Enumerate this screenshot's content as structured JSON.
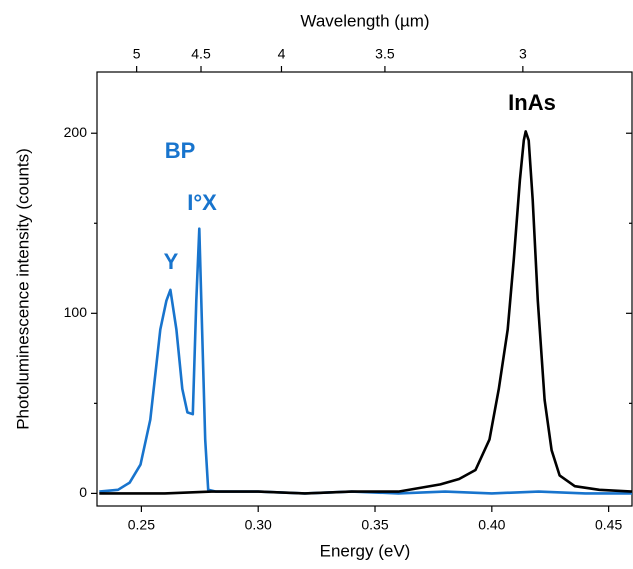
{
  "chart_data": {
    "type": "line",
    "xlabel": "Energy (eV)",
    "ylabel": "Photoluminescence intensity (counts)",
    "x2label": "Wavelength (µm)",
    "xlim": [
      0.231,
      0.46
    ],
    "ylim": [
      -7,
      234
    ],
    "xticks": [
      0.25,
      {
        "value": 0.3,
        "label": "0.30"
      },
      0.35,
      {
        "value": 0.4,
        "label": "0.40"
      },
      0.45
    ],
    "yticks": [
      0,
      100,
      200
    ],
    "y_minor_ticks": [
      50,
      150
    ],
    "x2ticks": [
      5,
      4.5,
      4,
      3.5,
      3
    ],
    "annotations": [
      "Y",
      "I°X"
    ],
    "series": [
      {
        "name": "BP",
        "color": "#1874cd",
        "x": [
          0.232,
          0.24,
          0.245,
          0.2496,
          0.2538,
          0.2581,
          0.2607,
          0.2624,
          0.265,
          0.2675,
          0.2697,
          0.272,
          0.2735,
          0.2748,
          0.276,
          0.2773,
          0.2786,
          0.282,
          0.3,
          0.32,
          0.34,
          0.36,
          0.38,
          0.4,
          0.42,
          0.44,
          0.46
        ],
        "values": [
          1,
          2,
          6,
          16,
          41,
          91,
          107,
          113,
          91,
          58,
          45,
          44,
          107,
          147,
          91,
          30,
          2,
          1,
          1,
          0,
          1,
          0,
          1,
          0,
          1,
          0,
          0
        ]
      },
      {
        "name": "InAs",
        "color": "#000000",
        "x": [
          0.232,
          0.26,
          0.28,
          0.3,
          0.32,
          0.34,
          0.36,
          0.369,
          0.378,
          0.386,
          0.393,
          0.399,
          0.403,
          0.4068,
          0.4094,
          0.412,
          0.4137,
          0.4145,
          0.4158,
          0.4175,
          0.4197,
          0.4226,
          0.4256,
          0.429,
          0.4355,
          0.446,
          0.46
        ],
        "values": [
          0,
          0,
          1,
          1,
          0,
          1,
          1,
          3,
          5,
          8,
          13,
          30,
          58,
          91,
          130,
          174,
          196,
          201,
          196,
          163,
          107,
          52,
          24,
          10,
          4,
          2,
          1
        ]
      }
    ]
  }
}
